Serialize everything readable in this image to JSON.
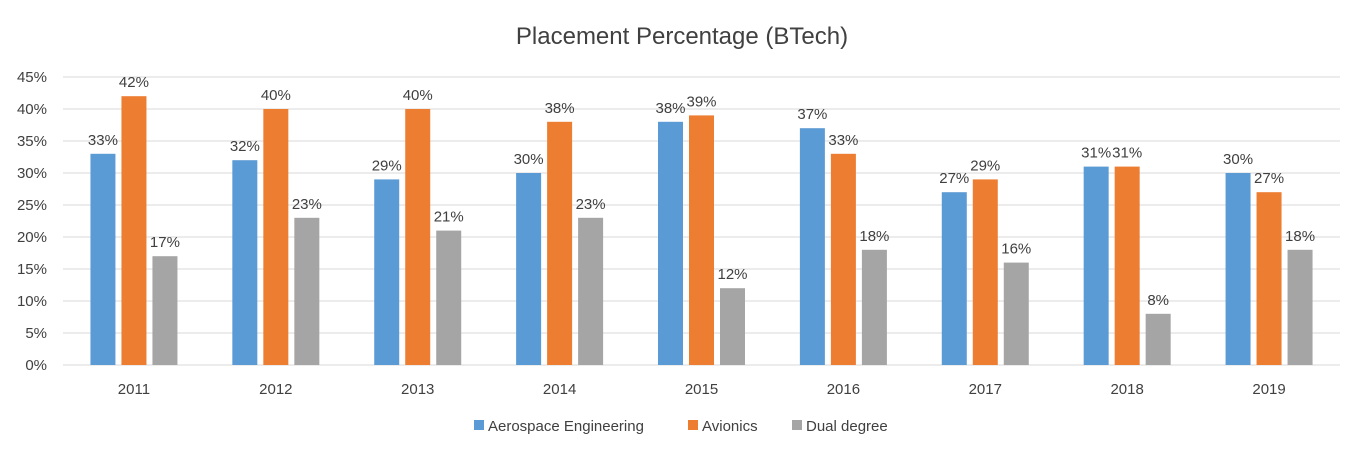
{
  "chart_data": {
    "type": "bar",
    "title": "Placement Percentage (BTech)",
    "xlabel": "",
    "ylabel": "",
    "ylim": [
      0,
      45
    ],
    "yticks": [
      "0%",
      "5%",
      "10%",
      "15%",
      "20%",
      "25%",
      "30%",
      "35%",
      "40%",
      "45%"
    ],
    "ytick_values": [
      0,
      5,
      10,
      15,
      20,
      25,
      30,
      35,
      40,
      45
    ],
    "grid": true,
    "legend_position": "bottom",
    "categories": [
      "2011",
      "2012",
      "2013",
      "2014",
      "2015",
      "2016",
      "2017",
      "2018",
      "2019"
    ],
    "series": [
      {
        "name": "Aerospace Engineering",
        "color": "#5b9bd5",
        "values": [
          33,
          32,
          29,
          30,
          38,
          37,
          27,
          31,
          30
        ],
        "labels": [
          "33%",
          "32%",
          "29%",
          "30%",
          "38%",
          "37%",
          "27%",
          "31%",
          "30%"
        ]
      },
      {
        "name": "Avionics",
        "color": "#ed7d31",
        "values": [
          42,
          40,
          40,
          38,
          39,
          33,
          29,
          31,
          27
        ],
        "labels": [
          "42%",
          "40%",
          "40%",
          "38%",
          "39%",
          "33%",
          "29%",
          "31%",
          "27%"
        ]
      },
      {
        "name": "Dual degree",
        "color": "#a5a5a5",
        "values": [
          17,
          23,
          21,
          23,
          12,
          18,
          16,
          8,
          18
        ],
        "labels": [
          "17%",
          "23%",
          "21%",
          "23%",
          "12%",
          "18%",
          "16%",
          "8%",
          "18%"
        ]
      }
    ]
  }
}
